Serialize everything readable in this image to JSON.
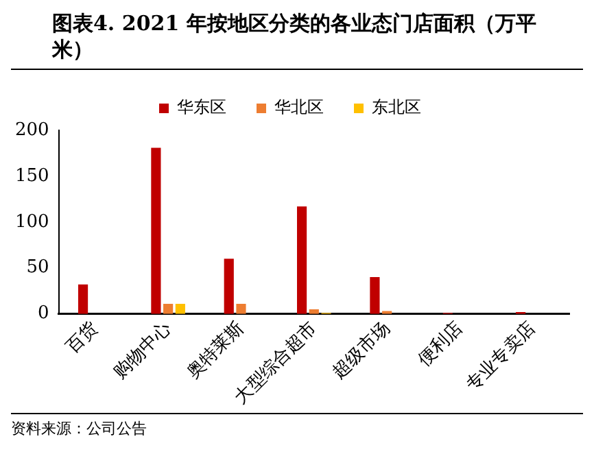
{
  "chart_data": {
    "type": "bar",
    "title": "图表4.  2021 年按地区分类的各业态门店面积（万平米）",
    "categories": [
      "百货",
      "购物中心",
      "奥特莱斯",
      "大型综合超市",
      "超级市场",
      "便利店",
      "专业专卖店"
    ],
    "series": [
      {
        "name": "华东区",
        "color": "#c00000",
        "values": [
          32,
          181,
          60,
          117,
          40,
          1,
          2
        ]
      },
      {
        "name": "华北区",
        "color": "#ed7d31",
        "values": [
          0,
          11,
          11,
          5,
          3,
          0,
          0
        ]
      },
      {
        "name": "东北区",
        "color": "#ffc000",
        "values": [
          0,
          11,
          0,
          1,
          0,
          0,
          0
        ]
      }
    ],
    "ylim": [
      0,
      200
    ],
    "yticks": [
      0,
      50,
      100,
      150,
      200
    ],
    "grid": false,
    "legend": "top",
    "annotations": [
      "资料来源：公司公告"
    ]
  }
}
